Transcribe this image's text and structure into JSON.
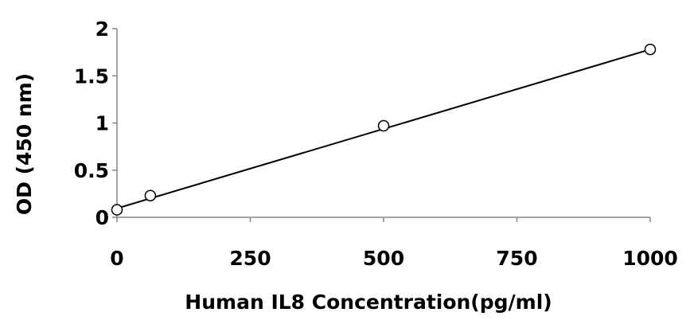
{
  "chart_data": {
    "type": "scatter",
    "xlabel": "Human IL8 Concentration(pg/ml)",
    "ylabel": "OD (450 nm)",
    "xlim": [
      0,
      1000
    ],
    "ylim": [
      0,
      2
    ],
    "xticks": [
      0,
      250,
      500,
      750,
      1000
    ],
    "xtick_labels": [
      "0",
      "250",
      "500",
      "750",
      "1000"
    ],
    "yticks": [
      0,
      0.5,
      1,
      1.5,
      2
    ],
    "ytick_labels": [
      "0",
      "0.5",
      "1",
      "1.5",
      "2"
    ],
    "grid": false,
    "series": [
      {
        "x": [
          0,
          62.5,
          500,
          1000
        ],
        "y": [
          0.08,
          0.23,
          0.97,
          1.78
        ],
        "marker": "open-circle",
        "color": "#000000"
      }
    ],
    "trendline": {
      "x": [
        0,
        1000
      ],
      "y": [
        0.095,
        1.78
      ],
      "color": "#000000"
    }
  }
}
